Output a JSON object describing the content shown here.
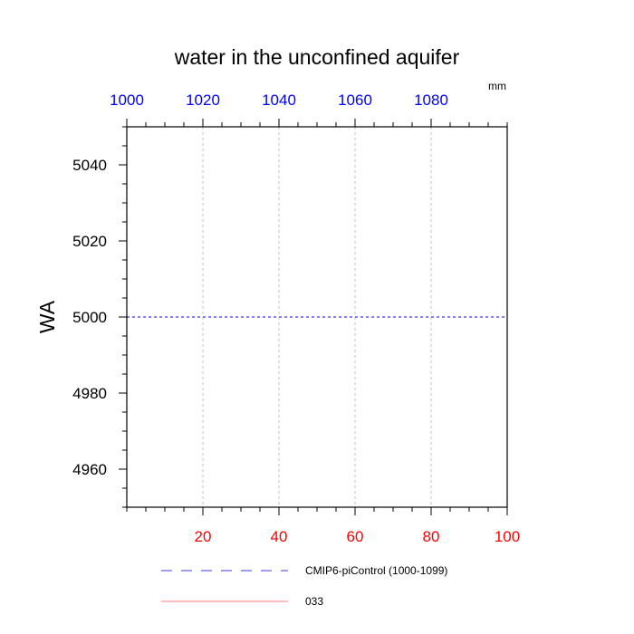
{
  "chart_data": {
    "type": "line",
    "title": "water in the unconfined aquifer",
    "units": "mm",
    "ylabel": "WA",
    "ylim": [
      4950,
      5050
    ],
    "yticks": [
      4960,
      4980,
      5000,
      5020,
      5040
    ],
    "y_minor_step": 5,
    "bottom_axis": {
      "range": [
        0,
        100
      ],
      "ticks": [
        20,
        40,
        60,
        80,
        100
      ],
      "minor_step": 5,
      "color": "#ff0000"
    },
    "top_axis": {
      "range": [
        1000,
        1100
      ],
      "ticks": [
        1000,
        1020,
        1040,
        1060,
        1080
      ],
      "minor_step": 5,
      "color": "#0000ff"
    },
    "grid": {
      "vertical": true,
      "horizontal": false,
      "color": "#b4b4b4"
    },
    "series": [
      {
        "name": "CMIP6-piControl (1000-1099)",
        "axis": "top",
        "style": "dashed",
        "color": "#3c3cdc",
        "x": [
          1000,
          1100
        ],
        "y": [
          5000,
          5000
        ]
      },
      {
        "name": "033",
        "axis": "bottom",
        "style": "solid",
        "color": "#ff7878",
        "x": [],
        "y": []
      }
    ],
    "legend_position": "below"
  }
}
